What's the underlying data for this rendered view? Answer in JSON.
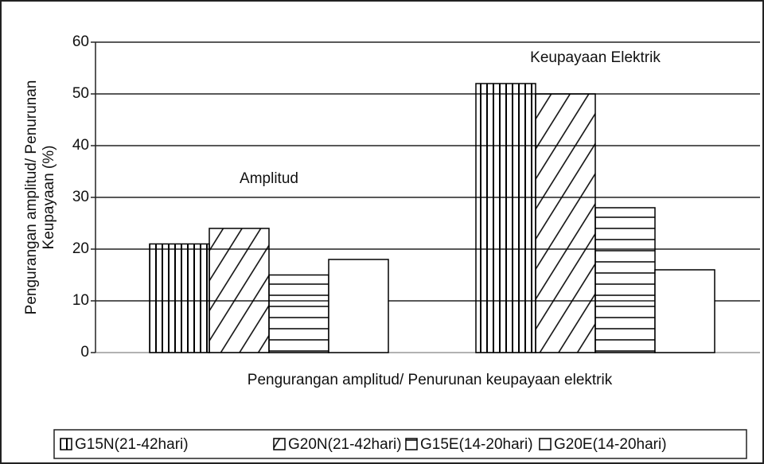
{
  "chart_data": {
    "type": "bar",
    "y_label": [
      "Pengurangan amplitud/ Penurunan",
      "Keupayaan (%)"
    ],
    "x_label": "Pengurangan amplitud/ Penurunan keupayaan elektrik",
    "categories": [
      "Amplitud",
      "Keupayaan Elektrik"
    ],
    "series": [
      {
        "name": "G15N(21-42hari)",
        "color": "#000000",
        "pattern": "vertical",
        "values": [
          21,
          52
        ]
      },
      {
        "name": "G20N(21-42hari)",
        "color": "#000000",
        "pattern": "diagonal",
        "values": [
          24,
          50
        ]
      },
      {
        "name": "G15E(14-20hari)",
        "color": "#000000",
        "pattern": "horizontal",
        "values": [
          15,
          28
        ]
      },
      {
        "name": "G20E(14-20hari)",
        "color": "#000000",
        "pattern": "none",
        "values": [
          18,
          16
        ]
      }
    ],
    "ylim": [
      0,
      60
    ],
    "yticks": [
      0,
      10,
      20,
      30,
      40,
      50,
      60
    ],
    "grid": true
  }
}
